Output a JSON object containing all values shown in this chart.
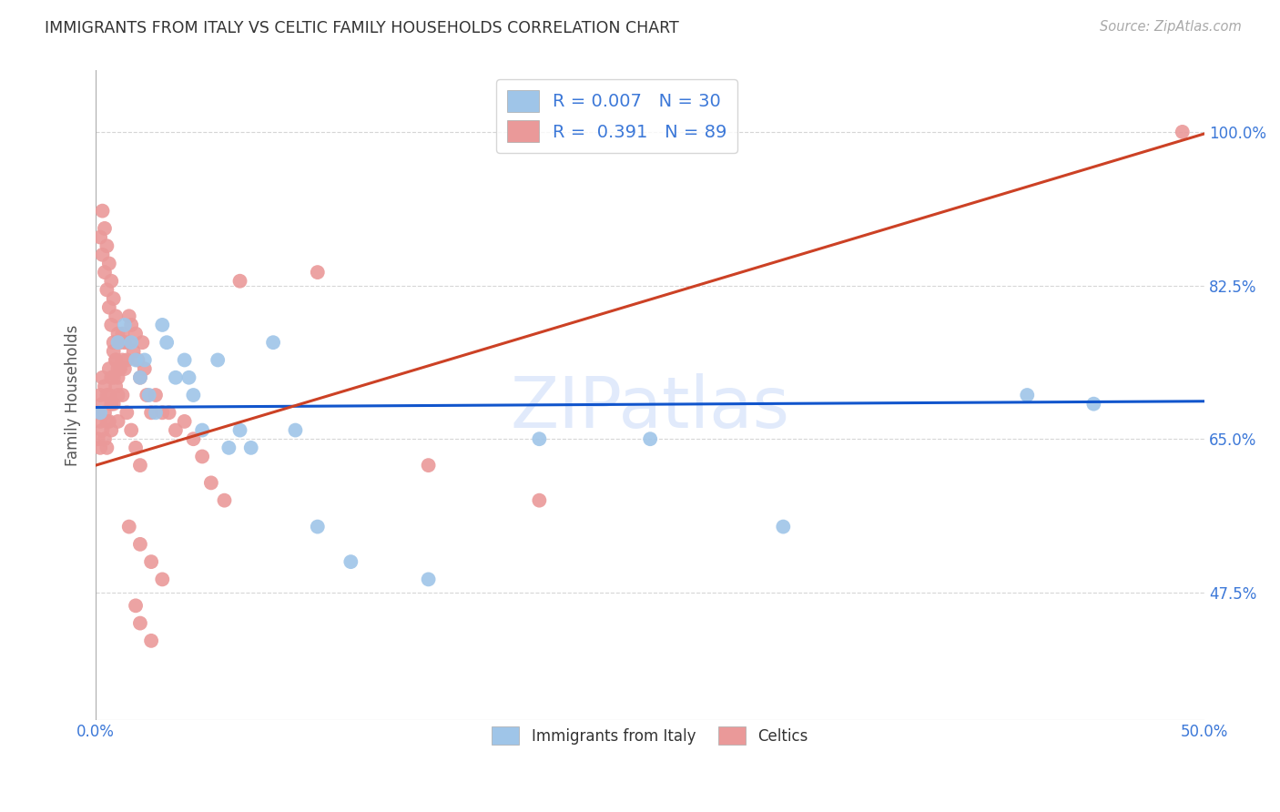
{
  "title": "IMMIGRANTS FROM ITALY VS CELTIC FAMILY HOUSEHOLDS CORRELATION CHART",
  "source": "Source: ZipAtlas.com",
  "ylabel": "Family Households",
  "yticks": [
    "100.0%",
    "82.5%",
    "65.0%",
    "47.5%"
  ],
  "ytick_vals": [
    1.0,
    0.825,
    0.65,
    0.475
  ],
  "xlim": [
    0.0,
    0.5
  ],
  "ylim": [
    0.33,
    1.07
  ],
  "legend1_label": "R = 0.007   N = 30",
  "legend2_label": "R =  0.391   N = 89",
  "legend_bottom1": "Immigrants from Italy",
  "legend_bottom2": "Celtics",
  "blue_color": "#9fc5e8",
  "pink_color": "#ea9999",
  "blue_line_color": "#1155cc",
  "pink_line_color": "#cc4125",
  "background_color": "#ffffff",
  "grid_color": "#cccccc",
  "watermark": "ZIPatlas",
  "blue_x": [
    0.002,
    0.01,
    0.013,
    0.016,
    0.018,
    0.02,
    0.022,
    0.024,
    0.027,
    0.03,
    0.032,
    0.036,
    0.04,
    0.042,
    0.044,
    0.048,
    0.055,
    0.06,
    0.065,
    0.07,
    0.08,
    0.09,
    0.1,
    0.115,
    0.15,
    0.2,
    0.25,
    0.31,
    0.42,
    0.45
  ],
  "blue_y": [
    0.68,
    0.76,
    0.78,
    0.76,
    0.74,
    0.72,
    0.74,
    0.7,
    0.68,
    0.78,
    0.76,
    0.72,
    0.74,
    0.72,
    0.7,
    0.66,
    0.74,
    0.64,
    0.66,
    0.64,
    0.76,
    0.66,
    0.55,
    0.51,
    0.49,
    0.65,
    0.65,
    0.55,
    0.7,
    0.69
  ],
  "pink_x": [
    0.001,
    0.001,
    0.002,
    0.002,
    0.002,
    0.003,
    0.003,
    0.003,
    0.004,
    0.004,
    0.004,
    0.005,
    0.005,
    0.005,
    0.006,
    0.006,
    0.006,
    0.007,
    0.007,
    0.007,
    0.008,
    0.008,
    0.008,
    0.009,
    0.009,
    0.01,
    0.01,
    0.01,
    0.011,
    0.011,
    0.012,
    0.012,
    0.013,
    0.013,
    0.014,
    0.015,
    0.015,
    0.016,
    0.017,
    0.018,
    0.019,
    0.02,
    0.021,
    0.022,
    0.023,
    0.025,
    0.027,
    0.03,
    0.033,
    0.036,
    0.04,
    0.044,
    0.048,
    0.052,
    0.058,
    0.065,
    0.002,
    0.003,
    0.004,
    0.005,
    0.006,
    0.007,
    0.008,
    0.009,
    0.01,
    0.012,
    0.014,
    0.016,
    0.018,
    0.02,
    0.003,
    0.004,
    0.005,
    0.006,
    0.007,
    0.008,
    0.009,
    0.01,
    0.015,
    0.02,
    0.025,
    0.03,
    0.018,
    0.02,
    0.025,
    0.49,
    0.2,
    0.15,
    0.1
  ],
  "pink_y": [
    0.68,
    0.65,
    0.7,
    0.67,
    0.64,
    0.72,
    0.69,
    0.66,
    0.71,
    0.68,
    0.65,
    0.7,
    0.67,
    0.64,
    0.73,
    0.7,
    0.67,
    0.72,
    0.69,
    0.66,
    0.75,
    0.72,
    0.69,
    0.74,
    0.71,
    0.73,
    0.7,
    0.67,
    0.76,
    0.73,
    0.77,
    0.74,
    0.76,
    0.73,
    0.74,
    0.79,
    0.76,
    0.78,
    0.75,
    0.77,
    0.74,
    0.72,
    0.76,
    0.73,
    0.7,
    0.68,
    0.7,
    0.68,
    0.68,
    0.66,
    0.67,
    0.65,
    0.63,
    0.6,
    0.58,
    0.83,
    0.88,
    0.86,
    0.84,
    0.82,
    0.8,
    0.78,
    0.76,
    0.74,
    0.72,
    0.7,
    0.68,
    0.66,
    0.64,
    0.62,
    0.91,
    0.89,
    0.87,
    0.85,
    0.83,
    0.81,
    0.79,
    0.77,
    0.55,
    0.53,
    0.51,
    0.49,
    0.46,
    0.44,
    0.42,
    1.0,
    0.58,
    0.62,
    0.84
  ],
  "blue_trend_x": [
    0.0,
    0.5
  ],
  "blue_trend_y": [
    0.686,
    0.693
  ],
  "pink_trend_x": [
    0.0,
    0.5
  ],
  "pink_trend_y": [
    0.62,
    0.998
  ]
}
